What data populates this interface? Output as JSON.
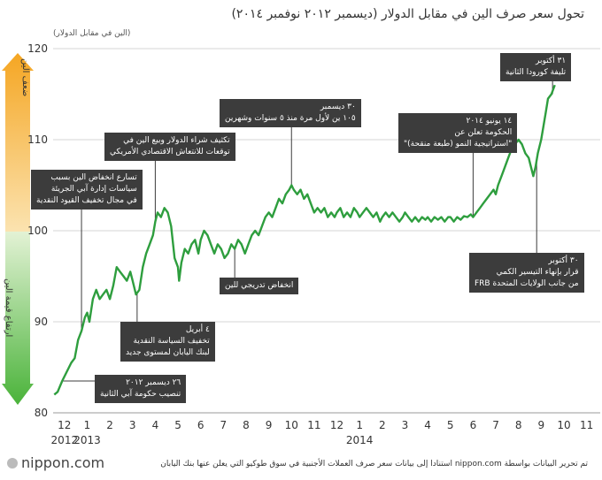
{
  "title": "تحول سعر صرف الين في مقابل الدولار (ديسمبر ٢٠١٢ نوفمبر ٢٠١٤)",
  "unit_label": "(الين في مقابل الدولار)",
  "side_labels": {
    "top": "ضعف الين",
    "bottom": "ارتفاع قيمة الين"
  },
  "footer_note": "تم تحرير البيانات بواسطة nippon.com استنادا إلى بيانات سعر صرف العملات الأجنبية في سوق طوكيو التي يعلن عنها بنك اليابان",
  "logo": "nippon.com",
  "colors": {
    "line": "#2e9e3e",
    "annotation_bg": "#3c3c3c",
    "arrow_top": "#f0a020",
    "arrow_bottom": "#5fb840"
  },
  "annotations": [
    {
      "id": "a1",
      "lines": [
        "٢٦ ديسمبر ٢٠١٢",
        "تنصيب حكومة آبي الثانية"
      ]
    },
    {
      "id": "a2",
      "lines": [
        "تسارع انخفاض الين بسبب",
        "سياسات إدارة آبي الجريئة",
        "في مجال تخفيف القيود النقدية"
      ]
    },
    {
      "id": "a3",
      "lines": [
        "٤ أبريل",
        "تخفيف السياسة النقدية",
        "لبنك اليابان لمستوى جديد"
      ]
    },
    {
      "id": "a4",
      "lines": [
        "تكثيف شراء الدولار وبيع الين في",
        "توقعات للانتعاش الاقتصادي الأمريكي"
      ]
    },
    {
      "id": "a5",
      "lines": [
        "انخفاض تدريجي للين"
      ]
    },
    {
      "id": "a6",
      "lines": [
        "٣٠ ديسمبر",
        "١٠٥ ين لأول مرة منذ ٥ سنوات وشهرين"
      ]
    },
    {
      "id": "a7",
      "lines": [
        "١٤ يونيو ٢٠١٤",
        "الحكومة تعلن عن",
        "\"استراتيجية النمو (طبعة منقحة)\""
      ]
    },
    {
      "id": "a8",
      "lines": [
        "٣٠ أكتوبر",
        "قرار بإنهاء التيسير الكمي",
        "من جانب الولايات المتحدة FRB"
      ]
    },
    {
      "id": "a9",
      "lines": [
        "٣١ أكتوبر",
        "تليفة كورودا الثانية"
      ]
    }
  ],
  "chart_data": {
    "type": "line",
    "title": "تحول سعر صرف الين في مقابل الدولار (ديسمبر ٢٠١٢ نوفمبر ٢٠١٤)",
    "ylabel": "(الين في مقابل الدولار)",
    "xlabel": "",
    "ylim": [
      80,
      120
    ],
    "yticks": [
      80,
      90,
      100,
      110,
      120
    ],
    "grid": true,
    "xticks": [
      {
        "x": 0,
        "label": "12"
      },
      {
        "x": 1,
        "label": "1"
      },
      {
        "x": 2,
        "label": "2"
      },
      {
        "x": 3,
        "label": "3"
      },
      {
        "x": 4,
        "label": "4"
      },
      {
        "x": 5,
        "label": "5"
      },
      {
        "x": 6,
        "label": "6"
      },
      {
        "x": 7,
        "label": "7"
      },
      {
        "x": 8,
        "label": "8"
      },
      {
        "x": 9,
        "label": "9"
      },
      {
        "x": 10,
        "label": "10"
      },
      {
        "x": 11,
        "label": "11"
      },
      {
        "x": 12,
        "label": "12"
      },
      {
        "x": 13,
        "label": "1"
      },
      {
        "x": 14,
        "label": "2"
      },
      {
        "x": 15,
        "label": "3"
      },
      {
        "x": 16,
        "label": "4"
      },
      {
        "x": 17,
        "label": "5"
      },
      {
        "x": 18,
        "label": "6"
      },
      {
        "x": 19,
        "label": "7"
      },
      {
        "x": 20,
        "label": "8"
      },
      {
        "x": 21,
        "label": "9"
      },
      {
        "x": 22,
        "label": "10"
      },
      {
        "x": 23,
        "label": "11"
      }
    ],
    "year_labels": [
      {
        "x": 0,
        "label": "2012"
      },
      {
        "x": 1,
        "label": "2013"
      },
      {
        "x": 13,
        "label": "2014"
      }
    ],
    "xlim": [
      -0.5,
      23.6
    ],
    "series": [
      {
        "points": [
          [
            -0.45,
            82.0
          ],
          [
            -0.3,
            82.3
          ],
          [
            -0.1,
            83.5
          ],
          [
            0.1,
            84.5
          ],
          [
            0.3,
            85.5
          ],
          [
            0.45,
            86.0
          ],
          [
            0.6,
            88.0
          ],
          [
            0.75,
            89.0
          ],
          [
            0.9,
            90.5
          ],
          [
            1.0,
            91.0
          ],
          [
            1.1,
            90.0
          ],
          [
            1.25,
            92.5
          ],
          [
            1.4,
            93.5
          ],
          [
            1.55,
            92.5
          ],
          [
            1.7,
            93.0
          ],
          [
            1.85,
            93.5
          ],
          [
            2.0,
            92.5
          ],
          [
            2.15,
            94.0
          ],
          [
            2.3,
            96.0
          ],
          [
            2.45,
            95.5
          ],
          [
            2.6,
            95.0
          ],
          [
            2.75,
            94.5
          ],
          [
            2.9,
            95.5
          ],
          [
            3.0,
            94.5
          ],
          [
            3.15,
            93.0
          ],
          [
            3.3,
            93.5
          ],
          [
            3.45,
            96.0
          ],
          [
            3.6,
            97.5
          ],
          [
            3.75,
            98.5
          ],
          [
            3.9,
            99.5
          ],
          [
            4.0,
            101.0
          ],
          [
            4.1,
            102.0
          ],
          [
            4.25,
            101.5
          ],
          [
            4.4,
            102.5
          ],
          [
            4.55,
            102.0
          ],
          [
            4.7,
            100.5
          ],
          [
            4.85,
            97.0
          ],
          [
            5.0,
            96.0
          ],
          [
            5.05,
            94.5
          ],
          [
            5.15,
            96.5
          ],
          [
            5.3,
            98.0
          ],
          [
            5.45,
            97.5
          ],
          [
            5.6,
            98.5
          ],
          [
            5.75,
            99.0
          ],
          [
            5.9,
            97.5
          ],
          [
            6.0,
            99.0
          ],
          [
            6.15,
            100.0
          ],
          [
            6.3,
            99.5
          ],
          [
            6.45,
            98.5
          ],
          [
            6.6,
            97.5
          ],
          [
            6.75,
            98.5
          ],
          [
            6.9,
            98.0
          ],
          [
            7.05,
            97.0
          ],
          [
            7.2,
            97.5
          ],
          [
            7.35,
            98.5
          ],
          [
            7.5,
            98.0
          ],
          [
            7.65,
            99.0
          ],
          [
            7.8,
            98.5
          ],
          [
            7.95,
            97.5
          ],
          [
            8.1,
            98.5
          ],
          [
            8.25,
            99.5
          ],
          [
            8.4,
            100.0
          ],
          [
            8.55,
            99.5
          ],
          [
            8.7,
            100.5
          ],
          [
            8.85,
            101.5
          ],
          [
            9.0,
            102.0
          ],
          [
            9.15,
            101.5
          ],
          [
            9.3,
            102.5
          ],
          [
            9.45,
            103.5
          ],
          [
            9.6,
            103.0
          ],
          [
            9.75,
            104.0
          ],
          [
            9.9,
            104.5
          ],
          [
            10.0,
            105.0
          ],
          [
            10.1,
            104.5
          ],
          [
            10.25,
            104.0
          ],
          [
            10.4,
            104.5
          ],
          [
            10.55,
            103.5
          ],
          [
            10.7,
            104.0
          ],
          [
            10.85,
            103.0
          ],
          [
            11.0,
            102.0
          ],
          [
            11.15,
            102.5
          ],
          [
            11.3,
            102.0
          ],
          [
            11.45,
            102.5
          ],
          [
            11.6,
            101.5
          ],
          [
            11.75,
            102.0
          ],
          [
            11.9,
            101.5
          ],
          [
            12.0,
            102.0
          ],
          [
            12.15,
            102.5
          ],
          [
            12.3,
            101.5
          ],
          [
            12.45,
            102.0
          ],
          [
            12.6,
            101.5
          ],
          [
            12.75,
            102.5
          ],
          [
            12.9,
            102.0
          ],
          [
            13.0,
            101.5
          ],
          [
            13.15,
            102.0
          ],
          [
            13.3,
            102.5
          ],
          [
            13.45,
            102.0
          ],
          [
            13.6,
            101.5
          ],
          [
            13.75,
            102.0
          ],
          [
            13.9,
            101.0
          ],
          [
            14.0,
            101.5
          ],
          [
            14.15,
            102.0
          ],
          [
            14.3,
            101.5
          ],
          [
            14.45,
            102.0
          ],
          [
            14.6,
            101.5
          ],
          [
            14.75,
            101.0
          ],
          [
            14.9,
            101.5
          ],
          [
            15.0,
            102.0
          ],
          [
            15.15,
            101.5
          ],
          [
            15.3,
            101.0
          ],
          [
            15.45,
            101.5
          ],
          [
            15.6,
            101.0
          ],
          [
            15.75,
            101.5
          ],
          [
            15.9,
            101.2
          ],
          [
            16.0,
            101.5
          ],
          [
            16.15,
            101.0
          ],
          [
            16.3,
            101.5
          ],
          [
            16.45,
            101.2
          ],
          [
            16.6,
            101.5
          ],
          [
            16.75,
            101.0
          ],
          [
            16.9,
            101.5
          ],
          [
            17.0,
            101.5
          ],
          [
            17.15,
            101.0
          ],
          [
            17.3,
            101.5
          ],
          [
            17.45,
            101.2
          ],
          [
            17.6,
            101.6
          ],
          [
            17.75,
            101.5
          ],
          [
            17.9,
            101.8
          ],
          [
            18.0,
            101.5
          ],
          [
            18.15,
            102.0
          ],
          [
            18.3,
            102.5
          ],
          [
            18.45,
            103.0
          ],
          [
            18.6,
            103.5
          ],
          [
            18.75,
            104.0
          ],
          [
            18.9,
            104.5
          ],
          [
            19.0,
            104.0
          ],
          [
            19.1,
            105.0
          ],
          [
            19.25,
            106.0
          ],
          [
            19.4,
            107.0
          ],
          [
            19.55,
            108.0
          ],
          [
            19.7,
            109.0
          ],
          [
            19.85,
            109.5
          ],
          [
            20.0,
            110.0
          ],
          [
            20.15,
            109.5
          ],
          [
            20.3,
            108.5
          ],
          [
            20.45,
            108.0
          ],
          [
            20.55,
            107.0
          ],
          [
            20.65,
            106.0
          ],
          [
            20.75,
            107.0
          ],
          [
            20.85,
            108.5
          ],
          [
            21.0,
            110.0
          ],
          [
            21.1,
            111.5
          ],
          [
            21.2,
            113.0
          ],
          [
            21.3,
            114.5
          ],
          [
            21.45,
            115.0
          ],
          [
            21.6,
            116.0
          ]
        ]
      }
    ]
  }
}
